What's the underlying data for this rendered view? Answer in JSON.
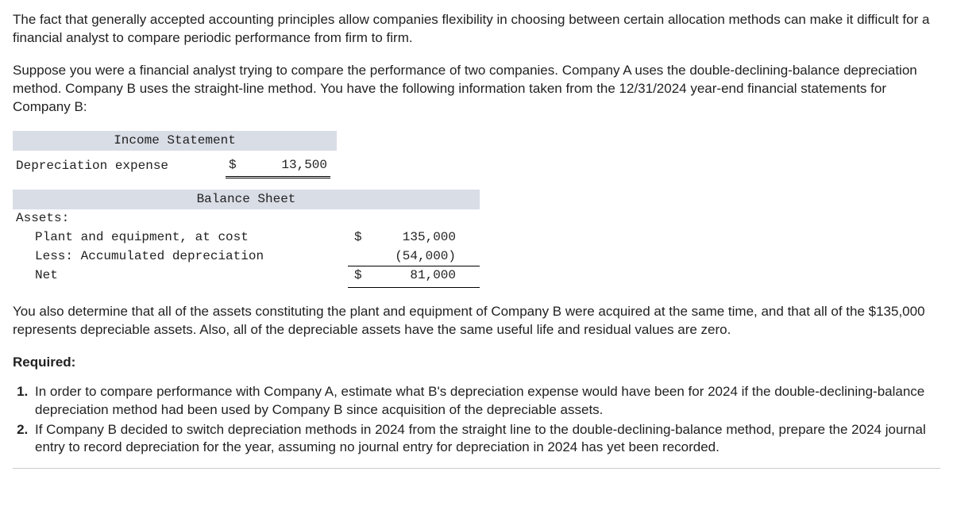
{
  "intro_p1": "The fact that generally accepted accounting principles allow companies flexibility in choosing between certain allocation methods can make it difficult for a financial analyst to compare periodic performance from firm to firm.",
  "intro_p2": "Suppose you were a financial analyst trying to compare the performance of two companies. Company A uses the double-declining-balance depreciation method. Company B uses the straight-line method. You have the following information taken from the 12/31/2024 year-end financial statements for Company B:",
  "income": {
    "header": "Income Statement",
    "row_label": "Depreciation expense",
    "row_value": "13,500",
    "header_bg": "#d9dde6"
  },
  "balance": {
    "header": "Balance Sheet",
    "assets_label": "Assets:",
    "pe_label": "Plant and equipment, at cost",
    "pe_value": "135,000",
    "less_label": "Less: Accumulated depreciation",
    "less_value": "(54,000)",
    "net_label": "Net",
    "net_value": "81,000",
    "header_bg": "#d9dde6"
  },
  "post_tables": "You also determine that all of the assets constituting the plant and equipment of Company B were acquired at the same time, and that all of the $135,000 represents depreciable assets. Also, all of the depreciable assets have the same useful life and residual values are zero.",
  "required_label": "Required:",
  "req_items": [
    "In order to compare performance with Company A, estimate what B's depreciation expense would have been for 2024 if the double-declining-balance depreciation method had been used by Company B since acquisition of the depreciable assets.",
    "If Company B decided to switch depreciation methods in 2024 from the straight line to the double-declining-balance method, prepare the 2024 journal entry to record depreciation for the year, assuming no journal entry for depreciation in 2024 has yet been recorded."
  ]
}
